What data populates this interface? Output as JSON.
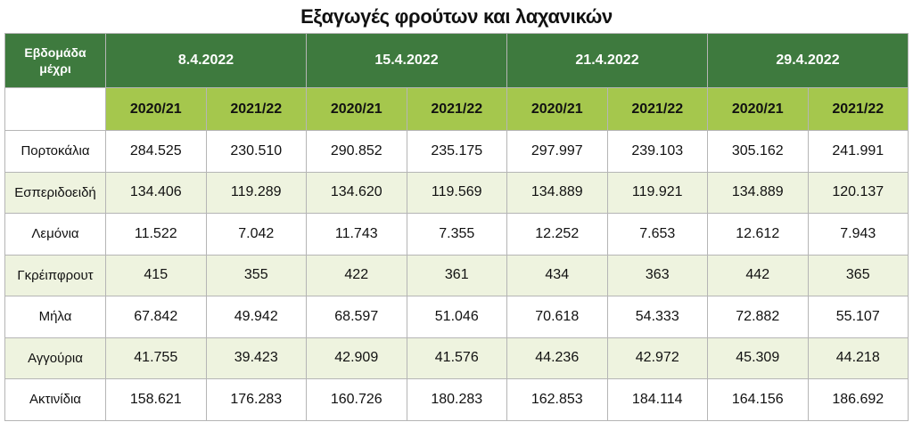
{
  "title": "Εξαγωγές φρούτων και λαχανικών",
  "header": {
    "corner": "Εβδομάδα μέχρι",
    "weeks": [
      "8.4.2022",
      "15.4.2022",
      "21.4.2022",
      "29.4.2022"
    ],
    "seasons": [
      "2020/21",
      "2021/22",
      "2020/21",
      "2021/22",
      "2020/21",
      "2021/22",
      "2020/21",
      "2021/22"
    ]
  },
  "rows": [
    {
      "label": "Πορτοκάλια",
      "values": [
        "284.525",
        "230.510",
        "290.852",
        "235.175",
        "297.997",
        "239.103",
        "305.162",
        "241.991"
      ]
    },
    {
      "label": "Εσπεριδοειδή",
      "values": [
        "134.406",
        "119.289",
        "134.620",
        "119.569",
        "134.889",
        "119.921",
        "134.889",
        "120.137"
      ]
    },
    {
      "label": "Λεμόνια",
      "values": [
        "11.522",
        "7.042",
        "11.743",
        "7.355",
        "12.252",
        "7.653",
        "12.612",
        "7.943"
      ]
    },
    {
      "label": "Γκρέιπφρουτ",
      "values": [
        "415",
        "355",
        "422",
        "361",
        "434",
        "363",
        "442",
        "365"
      ]
    },
    {
      "label": "Μήλα",
      "values": [
        "67.842",
        "49.942",
        "68.597",
        "51.046",
        "70.618",
        "54.333",
        "72.882",
        "55.107"
      ]
    },
    {
      "label": "Αγγούρια",
      "values": [
        "41.755",
        "39.423",
        "42.909",
        "41.576",
        "44.236",
        "42.972",
        "45.309",
        "44.218"
      ]
    },
    {
      "label": "Ακτινίδια",
      "values": [
        "158.621",
        "176.283",
        "160.726",
        "180.283",
        "162.853",
        "184.114",
        "164.156",
        "186.692"
      ]
    }
  ]
}
